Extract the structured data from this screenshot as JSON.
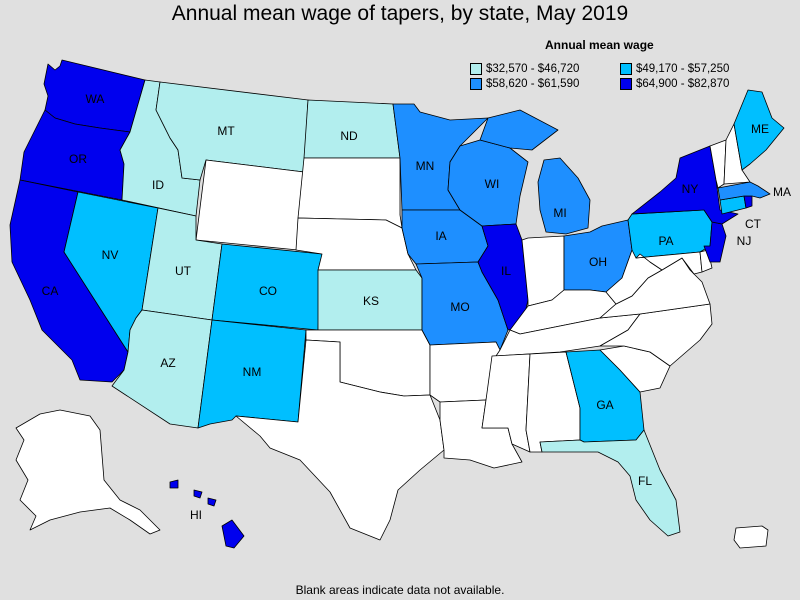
{
  "title": "Annual mean wage of tapers, by state, May 2019",
  "legend": {
    "title": "Annual mean wage",
    "items": [
      {
        "label": "$32,570 - $46,720",
        "color": "#b2eeee"
      },
      {
        "label": "$49,170 - $57,250",
        "color": "#00bfff"
      },
      {
        "label": "$58,620 - $61,590",
        "color": "#1e8fff"
      },
      {
        "label": "$64,900 - $82,870",
        "color": "#0000ee"
      }
    ]
  },
  "footnote": "Blank areas indicate data not available.",
  "no_data_color": "#ffffff",
  "states": {
    "WA": {
      "label": "WA",
      "tier": 3
    },
    "OR": {
      "label": "OR",
      "tier": 3
    },
    "CA": {
      "label": "CA",
      "tier": 3
    },
    "NV": {
      "label": "NV",
      "tier": 1
    },
    "ID": {
      "label": "ID",
      "tier": 0
    },
    "MT": {
      "label": "MT",
      "tier": 0
    },
    "WY": {
      "label": "",
      "tier": null
    },
    "UT": {
      "label": "UT",
      "tier": 0
    },
    "AZ": {
      "label": "AZ",
      "tier": 0
    },
    "CO": {
      "label": "CO",
      "tier": 1
    },
    "NM": {
      "label": "NM",
      "tier": 1
    },
    "ND": {
      "label": "ND",
      "tier": 0
    },
    "SD": {
      "label": "",
      "tier": null
    },
    "NE": {
      "label": "",
      "tier": null
    },
    "KS": {
      "label": "KS",
      "tier": 0
    },
    "OK": {
      "label": "",
      "tier": null
    },
    "TX": {
      "label": "",
      "tier": null
    },
    "MN": {
      "label": "MN",
      "tier": 2
    },
    "IA": {
      "label": "IA",
      "tier": 2
    },
    "MO": {
      "label": "MO",
      "tier": 2
    },
    "AR": {
      "label": "",
      "tier": null
    },
    "LA": {
      "label": "",
      "tier": null
    },
    "WI": {
      "label": "WI",
      "tier": 2
    },
    "IL": {
      "label": "IL",
      "tier": 3
    },
    "MI": {
      "label": "MI",
      "tier": 2
    },
    "IN": {
      "label": "",
      "tier": null
    },
    "OH": {
      "label": "OH",
      "tier": 2
    },
    "KY": {
      "label": "",
      "tier": null
    },
    "TN": {
      "label": "",
      "tier": null
    },
    "MS": {
      "label": "",
      "tier": null
    },
    "AL": {
      "label": "",
      "tier": null
    },
    "GA": {
      "label": "GA",
      "tier": 1
    },
    "FL": {
      "label": "FL",
      "tier": 0
    },
    "SC": {
      "label": "",
      "tier": null
    },
    "NC": {
      "label": "",
      "tier": null
    },
    "VA": {
      "label": "",
      "tier": null
    },
    "WV": {
      "label": "",
      "tier": null
    },
    "PA": {
      "label": "PA",
      "tier": 1
    },
    "NY": {
      "label": "NY",
      "tier": 3
    },
    "NJ": {
      "label": "NJ",
      "tier": 3
    },
    "MD": {
      "label": "",
      "tier": null
    },
    "DE": {
      "label": "",
      "tier": null
    },
    "CT": {
      "label": "CT",
      "tier": 1
    },
    "RI": {
      "label": "",
      "tier": 3
    },
    "MA": {
      "label": "MA",
      "tier": 2
    },
    "VT": {
      "label": "",
      "tier": null
    },
    "NH": {
      "label": "",
      "tier": null
    },
    "ME": {
      "label": "ME",
      "tier": 1
    },
    "AK": {
      "label": "",
      "tier": null
    },
    "HI": {
      "label": "HI",
      "tier": 3
    },
    "PR": {
      "label": "",
      "tier": null
    }
  }
}
